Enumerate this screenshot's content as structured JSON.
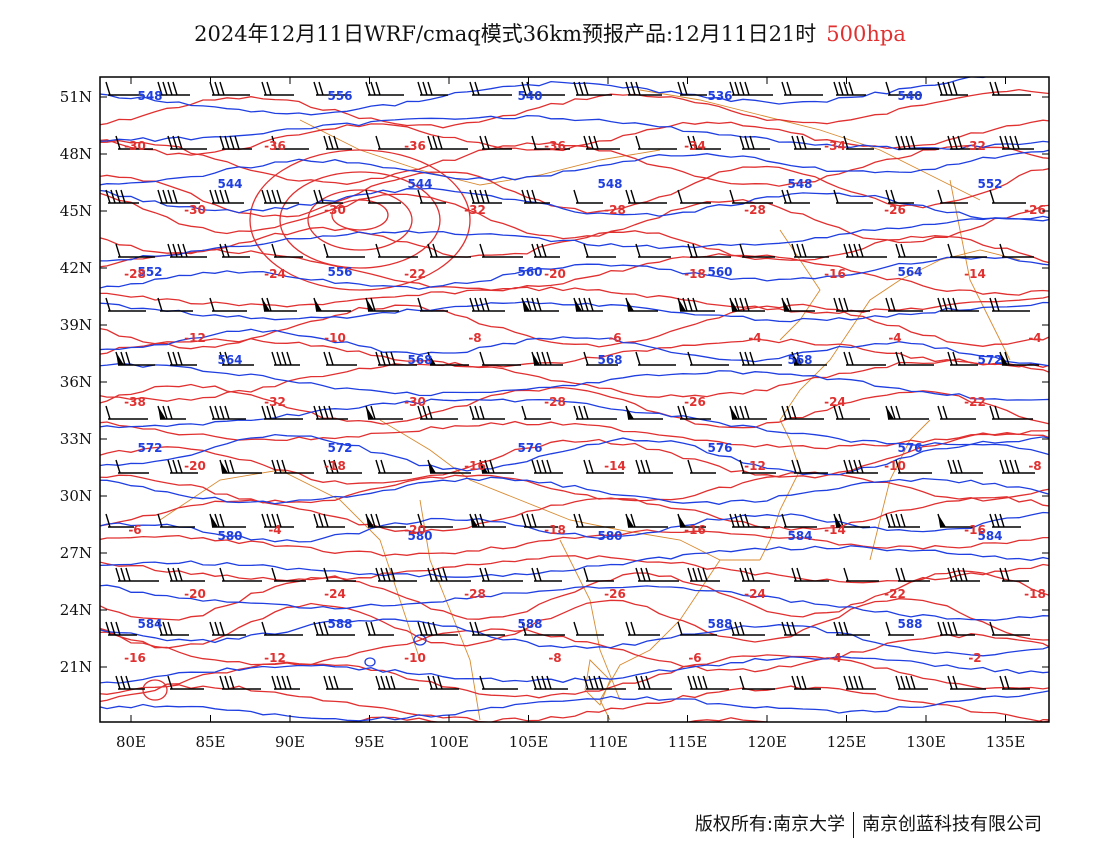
{
  "header": {
    "title": "2024年12月11日WRF/cmaq模式36km预报产品:12月11日21时",
    "level": "500hpa",
    "level_color": "#e03030"
  },
  "axes": {
    "lat_labels": [
      "51N",
      "48N",
      "45N",
      "42N",
      "39N",
      "36N",
      "33N",
      "30N",
      "27N",
      "24N",
      "21N"
    ],
    "lon_labels": [
      "80E",
      "85E",
      "90E",
      "95E",
      "100E",
      "105E",
      "110E",
      "115E",
      "120E",
      "125E",
      "130E",
      "135E"
    ]
  },
  "colors": {
    "geopotential_contour": "#1f3fe0",
    "temperature_contour": "#e03030",
    "wind_barb": "#000000",
    "coastline_border": "#d88a30"
  },
  "contour_labels": {
    "geopotential": [
      "548",
      "556",
      "540",
      "536",
      "540",
      "544",
      "544",
      "548",
      "548",
      "552",
      "552",
      "556",
      "560",
      "560",
      "564",
      "564",
      "568",
      "568",
      "568",
      "572",
      "572",
      "572",
      "576",
      "576",
      "576",
      "580",
      "580",
      "580",
      "584",
      "584",
      "584",
      "588",
      "588",
      "588",
      "588"
    ],
    "temperature": [
      "-30",
      "-36",
      "-36",
      "-36",
      "-34",
      "-34",
      "-32",
      "-30",
      "-30",
      "-32",
      "-28",
      "-28",
      "-26",
      "-26",
      "-28",
      "-24",
      "-22",
      "-20",
      "-18",
      "-16",
      "-14",
      "-12",
      "-10",
      "-8",
      "-6",
      "-4",
      "-4",
      "-4",
      "-38",
      "-32",
      "-30",
      "-28",
      "-26",
      "-24",
      "-22",
      "-20",
      "-18",
      "-16",
      "-14",
      "-12",
      "-10",
      "-8",
      "-6",
      "-4",
      "-20",
      "-18",
      "-16",
      "-14",
      "-16",
      "-20",
      "-24",
      "-28",
      "-26",
      "-24",
      "-22",
      "-18",
      "-16",
      "-12",
      "-10",
      "-8",
      "-6",
      "-4",
      "-2"
    ]
  },
  "footer": {
    "copyright": "版权所有:南京大学",
    "company": "南京创蓝科技有限公司"
  }
}
